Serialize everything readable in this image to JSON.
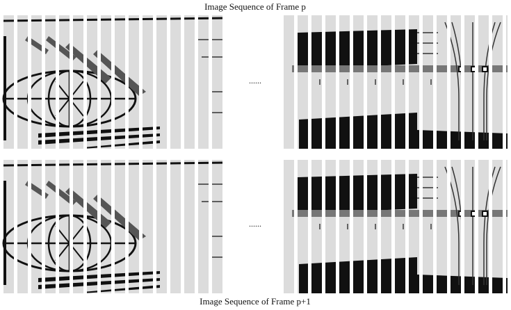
{
  "top_caption": "Image Sequence of Frame p",
  "rows": [
    {
      "ellipsis": "......"
    },
    {
      "ellipsis": "......"
    }
  ],
  "bottom_caption": "Image Sequence of Frame p+1"
}
